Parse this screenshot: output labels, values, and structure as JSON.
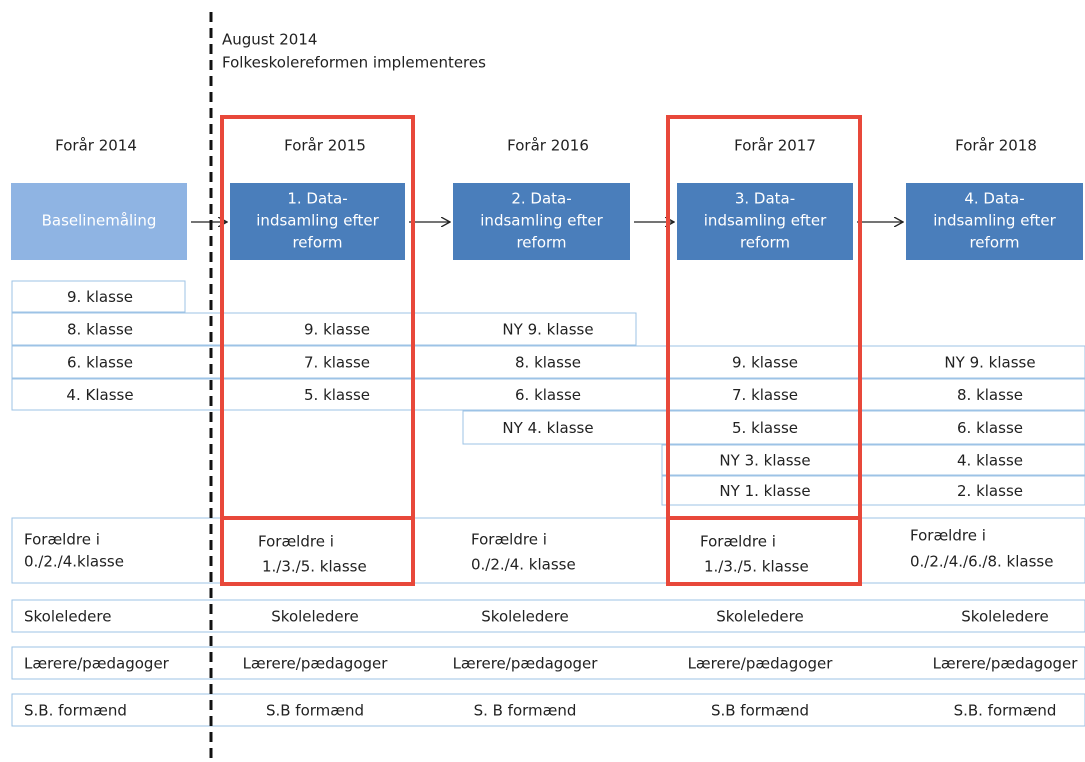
{
  "annotation": {
    "lines": [
      "August 2014",
      "Folkeskolereformen  implementeres"
    ]
  },
  "periods": [
    "Forår 2014",
    "Forår 2015",
    "Forår 2016",
    "Forår 2017",
    "Forår 2018"
  ],
  "stages": [
    [
      "Baselinemåling"
    ],
    [
      "1. Data-",
      "indsamling efter",
      "reform"
    ],
    [
      "2. Data-",
      "indsamling efter",
      "reform"
    ],
    [
      "3. Data-",
      "indsamling efter",
      "reform"
    ],
    [
      "4. Data-",
      "indsamling efter",
      "reform"
    ]
  ],
  "class_rows": [
    [
      "9. klasse",
      null,
      null,
      null,
      null
    ],
    [
      "8. klasse",
      "9. klasse",
      "NY 9. klasse",
      null,
      null
    ],
    [
      "6. klasse",
      "7. klasse",
      "8. klasse",
      "9. klasse",
      "NY 9. klasse"
    ],
    [
      "4. Klasse",
      "5. klasse",
      "6. klasse",
      "7. klasse",
      "8. klasse"
    ],
    [
      null,
      null,
      "NY  4. klasse",
      "5. klasse",
      "6. klasse"
    ],
    [
      null,
      null,
      null,
      "NY 3. klasse",
      "4. klasse"
    ],
    [
      null,
      null,
      null,
      "NY 1. klasse",
      "2. klasse"
    ]
  ],
  "parents": [
    [
      "Forældre i",
      "0./2./4.klasse"
    ],
    [
      "Forældre i",
      "1./3./5. klasse"
    ],
    [
      "Forældre i",
      "0./2./4. klasse"
    ],
    [
      "Forældre i",
      "1./3./5. klasse"
    ],
    [
      "Forældre i",
      "0./2./4./6./8. klasse"
    ]
  ],
  "staff_rows": [
    [
      "Skoleledere",
      "Skoleledere",
      "Skoleledere",
      "Skoleledere",
      "Skoleledere"
    ],
    [
      "Lærere/pædagoger",
      "Lærere/pædagoger",
      "Lærere/pædagoger",
      "Lærere/pædagoger",
      "Lærere/pædagoger"
    ],
    [
      "S.B. formænd",
      "S.B formænd",
      "S. B formænd",
      "S.B formænd",
      "S.B. formænd"
    ]
  ]
}
